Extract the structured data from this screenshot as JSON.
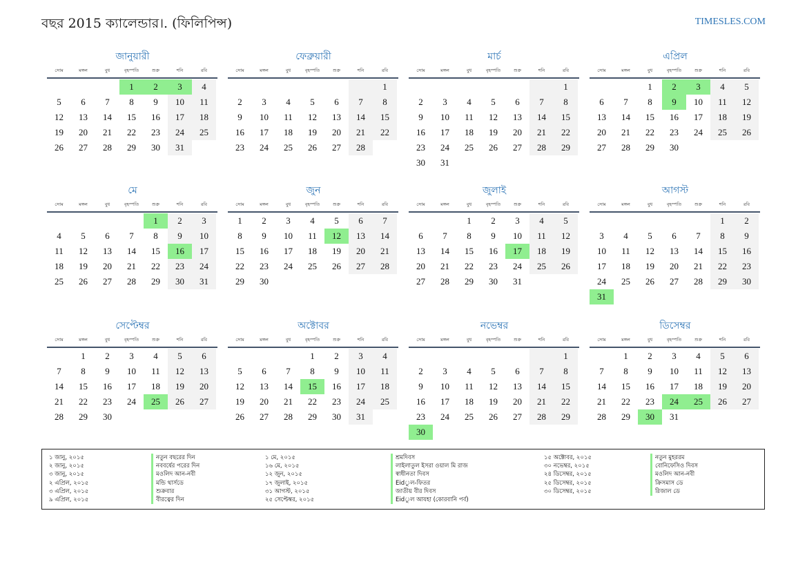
{
  "header": {
    "title": "বছর 2015 ক্যালেন্ডার।. (ফিলিপিন্স)",
    "site": "TIMESLES.COM"
  },
  "weekdays": [
    "সোম",
    "মঙ্গল",
    "বুধ",
    "বৃহস্পতি",
    "শুক্র",
    "শনি",
    "রবি"
  ],
  "colors": {
    "accent": "#2e75b6",
    "holiday": "#90ee90",
    "weekend": "#f2f2f2"
  },
  "months": [
    {
      "name": "জানুয়ারী",
      "offset": 3,
      "days": 31,
      "holidays": [
        1,
        2,
        3
      ]
    },
    {
      "name": "ফেব্রুয়ারী",
      "offset": 6,
      "days": 28,
      "holidays": []
    },
    {
      "name": "মার্চ",
      "offset": 6,
      "days": 31,
      "holidays": []
    },
    {
      "name": "এপ্রিল",
      "offset": 2,
      "days": 30,
      "holidays": [
        2,
        3,
        9
      ]
    },
    {
      "name": "মে",
      "offset": 4,
      "days": 31,
      "holidays": [
        1,
        16
      ]
    },
    {
      "name": "জুন",
      "offset": 0,
      "days": 30,
      "holidays": [
        12
      ]
    },
    {
      "name": "জুলাই",
      "offset": 2,
      "days": 31,
      "holidays": [
        17
      ]
    },
    {
      "name": "আগস্ট",
      "offset": 5,
      "days": 31,
      "holidays": [
        31
      ]
    },
    {
      "name": "সেপ্টেম্বর",
      "offset": 1,
      "days": 30,
      "holidays": [
        25
      ]
    },
    {
      "name": "অক্টোবর",
      "offset": 3,
      "days": 31,
      "holidays": [
        15
      ]
    },
    {
      "name": "নভেম্বর",
      "offset": 6,
      "days": 30,
      "holidays": [
        30
      ]
    },
    {
      "name": "ডিসেম্বর",
      "offset": 1,
      "days": 31,
      "holidays": [
        24,
        25,
        30
      ]
    }
  ],
  "holiday_columns": [
    {
      "dates": [
        "১ জানু, ২০১৫",
        "২ জানু, ২০১৫",
        "৩ জানু, ২০১৫",
        "২ এপ্রিল, ২০১৫",
        "৩ এপ্রিল, ২০১৫",
        "৯ এপ্রিল, ২০১৫"
      ],
      "names": [
        "নতুন বছরের দিন",
        "নববর্ষের পরের দিন",
        "মওলিদ আন-নবী",
        "মন্ডি থার্সডে",
        "শুক্রবার",
        "বীরত্বের দিন"
      ]
    },
    {
      "dates": [
        "১ মে, ২০১৫",
        "১৬ মে, ২০১৫",
        "১২ জুন, ২০১৫",
        "১৭ জুলাই, ২০১৫",
        "৩১ আগস্ট, ২০১৫",
        "২৫ সেপ্টেম্বর, ২০১৫"
      ],
      "names": [
        "শ্রমদিবস",
        "লাইলাতুল ইসরা ওয়াল মি রাজ",
        "স্বাধীনতা দিবস",
        "Eidুল-ফিতর",
        "জাতীয় বীর দিবস",
        "Eidুল আযহা (কোরবানি পর্ব)"
      ]
    },
    {
      "dates": [
        "১৫ অক্টোবর, ২০১৫",
        "৩০ নভেম্বর, ২০১৫",
        "২৪ ডিসেম্বর, ২০১৫",
        "২৫ ডিসেম্বর, ২০১৫",
        "৩০ ডিসেম্বর, ২০১৫"
      ],
      "names": [
        "নতুন মুহররম",
        "বোনিফেসিও দিবস",
        "মওলিদ আন-নবী",
        "ক্রিসমাস ডে",
        "রিজাল ডে"
      ]
    }
  ]
}
